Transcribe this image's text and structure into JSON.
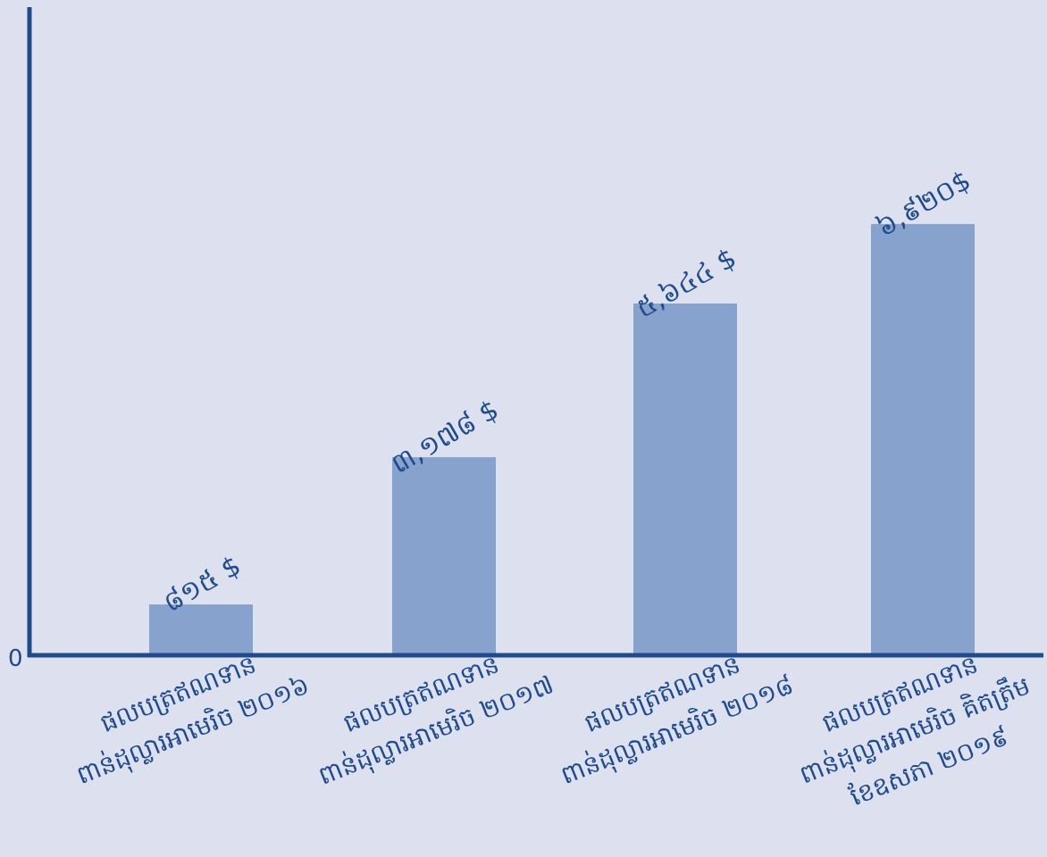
{
  "chart_data": {
    "type": "bar",
    "categories": [
      [
        "ផលបត្រឥណទាន",
        "ពាន់ដុល្លារអាមេរិច ២០១៦"
      ],
      [
        "ផលបត្រឥណទាន",
        "ពាន់ដុល្លារអាមេរិច ២០១៧"
      ],
      [
        "ផលបត្រឥណទាន",
        "ពាន់ដុល្លារអាមេរិច ២០១៨"
      ],
      [
        "ផលបត្រឥណទាន",
        "ពាន់ដុល្លារអាមេរិច គិតត្រឹម",
        "ខែឧសភា ២០១៩"
      ]
    ],
    "values": [
      815,
      3178,
      5644,
      6920
    ],
    "data_labels": [
      "៨១៥ $",
      "៣,១៧៨ $",
      "៥,៦៤៤ $",
      "៦,៩២០$"
    ],
    "y_tick_labels": [
      "0"
    ],
    "ylim": [
      0,
      10400
    ],
    "grid": false,
    "legend": "none",
    "colors": {
      "background": "#dde0ef",
      "bar": "#87a2cc",
      "axis": "#1f4a8c",
      "text": "#1f4a8c"
    }
  }
}
